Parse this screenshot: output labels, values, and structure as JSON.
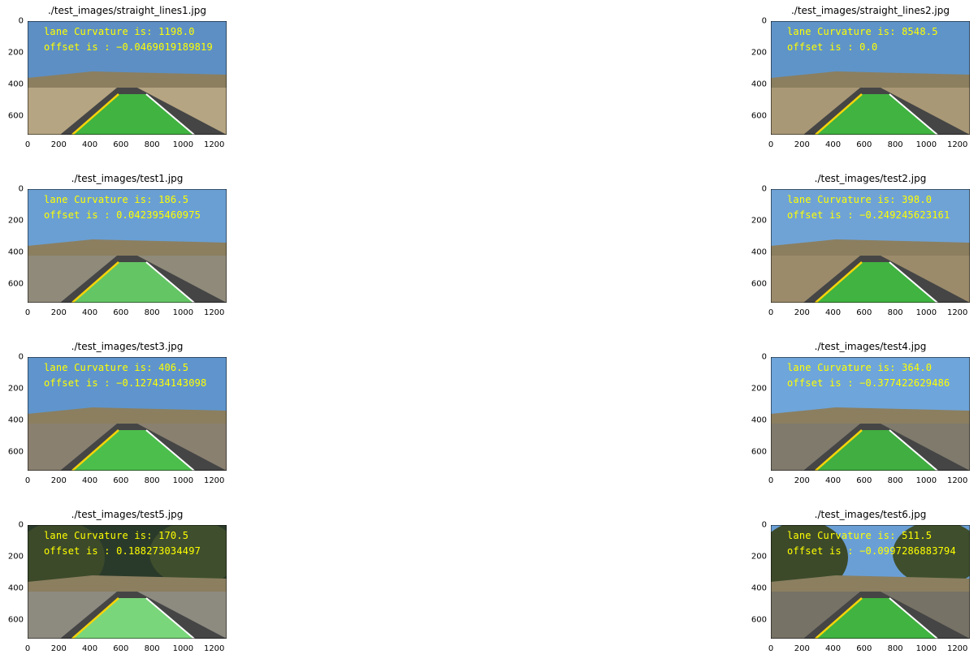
{
  "axes": {
    "x_ticks": [
      "0",
      "200",
      "400",
      "600",
      "800",
      "1000",
      "1200"
    ],
    "y_ticks": [
      "0",
      "200",
      "400",
      "600"
    ]
  },
  "panels": [
    {
      "title": "./test_images/straight_lines1.jpg",
      "curvature_text": "lane Curvature is: 1198.0",
      "offset_text": "offset is : −0.0469019189819",
      "scene": "straight",
      "colors": {
        "sky": "#5d8fc4",
        "ground": "#b6a582",
        "lane": "#3fbf3f"
      }
    },
    {
      "title": "./test_images/straight_lines2.jpg",
      "curvature_text": "lane Curvature is: 8548.5",
      "offset_text": "offset is : 0.0",
      "scene": "straight",
      "colors": {
        "sky": "#5f94c8",
        "ground": "#a99876",
        "lane": "#3fbf3f"
      }
    },
    {
      "title": "./test_images/test1.jpg",
      "curvature_text": "lane Curvature is: 186.5",
      "offset_text": "offset is : 0.042395460975",
      "scene": "curve",
      "colors": {
        "sky": "#6a9fd3",
        "ground": "#8f8a7a",
        "lane": "#67d367"
      }
    },
    {
      "title": "./test_images/test2.jpg",
      "curvature_text": "lane Curvature is: 398.0",
      "offset_text": "offset is : −0.249245623161",
      "scene": "curve",
      "colors": {
        "sky": "#6fa3d6",
        "ground": "#9b8b6b",
        "lane": "#3fbf3f"
      }
    },
    {
      "title": "./test_images/test3.jpg",
      "curvature_text": "lane Curvature is: 406.5",
      "offset_text": "offset is : −0.127434143098",
      "scene": "straight",
      "colors": {
        "sky": "#5f95cc",
        "ground": "#8a8070",
        "lane": "#4ccb4c"
      }
    },
    {
      "title": "./test_images/test4.jpg",
      "curvature_text": "lane Curvature is: 364.0",
      "offset_text": "offset is : −0.377422629486",
      "scene": "curve",
      "colors": {
        "sky": "#6ea5da",
        "ground": "#7f7a6c",
        "lane": "#3fb93f"
      }
    },
    {
      "title": "./test_images/test5.jpg",
      "curvature_text": "lane Curvature is: 170.5",
      "offset_text": "offset is : 0.188273034497",
      "scene": "trees",
      "colors": {
        "sky": "#2a3a2a",
        "ground": "#8d8a80",
        "lane": "#80e680"
      }
    },
    {
      "title": "./test_images/test6.jpg",
      "curvature_text": "lane Curvature is: 511.5",
      "offset_text": "offset is : −0.0997286883794",
      "scene": "trees",
      "colors": {
        "sky": "#6a9fd6",
        "ground": "#777266",
        "lane": "#3fbf3f"
      }
    }
  ]
}
